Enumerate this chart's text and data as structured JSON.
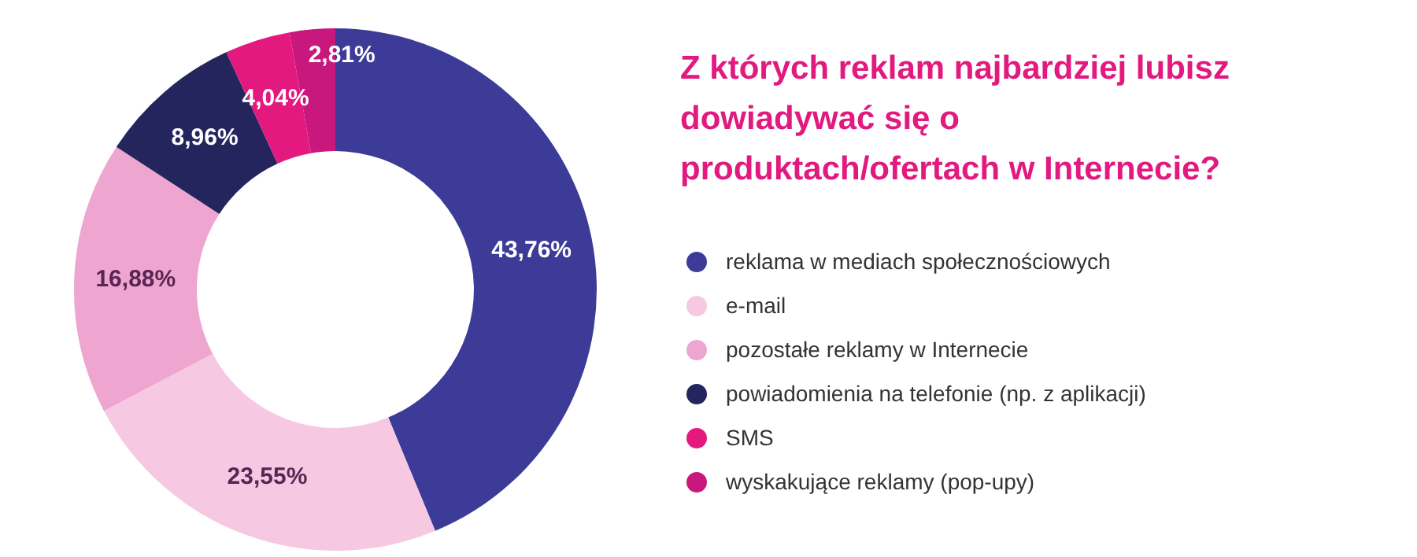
{
  "chart_data": {
    "type": "donut",
    "title": "Z których reklam najbardziej lubisz dowiadywać się o produktach/ofertach w Internecie?",
    "categories": [
      "reklama w mediach społecznościowych",
      "e-mail",
      "pozostałe reklamy w Internecie",
      "powiadomienia na telefonie (np. z aplikacji)",
      "SMS",
      "wyskakujące reklamy (pop-upy)"
    ],
    "values": [
      43.76,
      23.55,
      16.88,
      8.96,
      4.04,
      2.81
    ],
    "value_labels": [
      "43,76%",
      "23,55%",
      "16,88%",
      "8,96%",
      "4,04%",
      "2,81%"
    ],
    "colors": [
      "#3c3b98",
      "#f6c8e2",
      "#eea6d0",
      "#25255e",
      "#e4197f",
      "#c9187d"
    ],
    "legend": "right"
  }
}
